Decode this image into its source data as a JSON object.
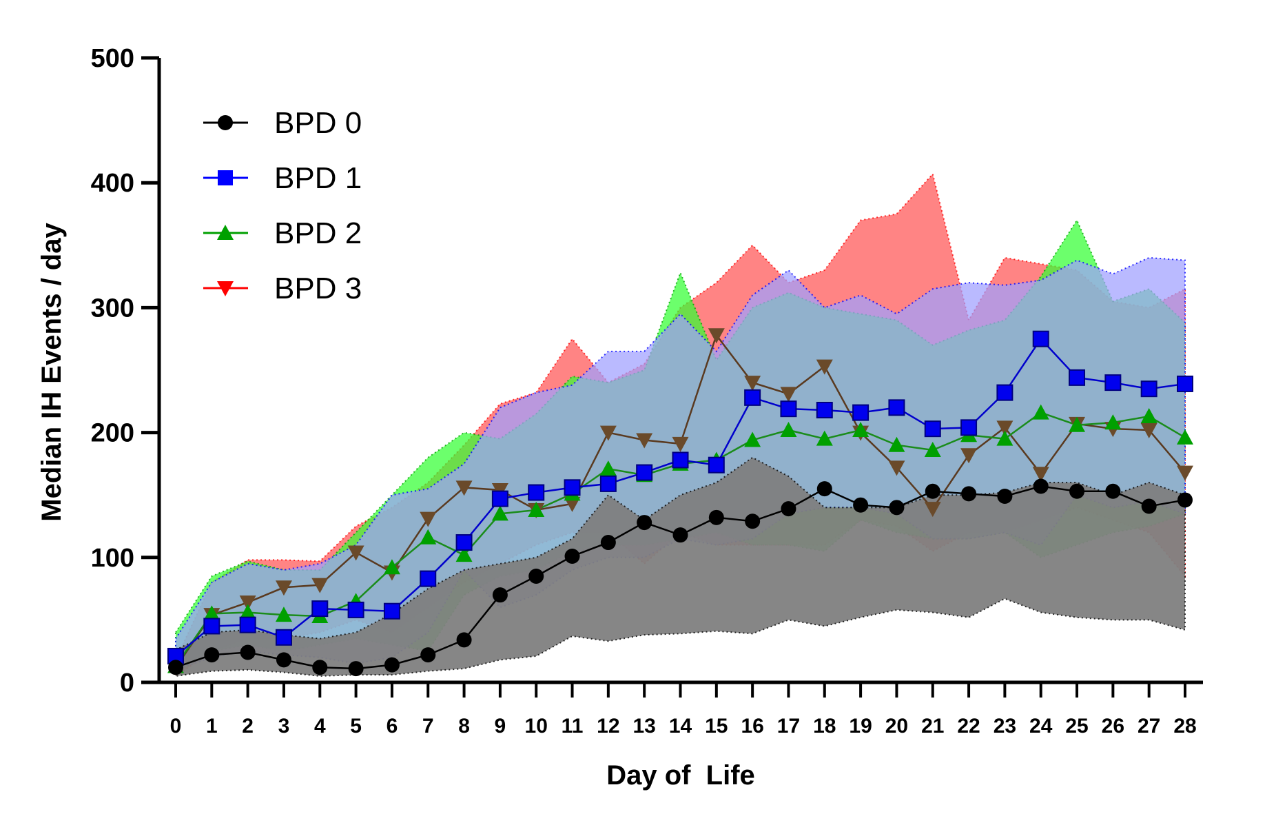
{
  "chart_data": {
    "type": "line",
    "title": "",
    "xlabel": "Day of  Life",
    "ylabel": "Median IH Events / day",
    "xlim": [
      0,
      28
    ],
    "ylim": [
      0,
      500
    ],
    "x": [
      0,
      1,
      2,
      3,
      4,
      5,
      6,
      7,
      8,
      9,
      10,
      11,
      12,
      13,
      14,
      15,
      16,
      17,
      18,
      19,
      20,
      21,
      22,
      23,
      24,
      25,
      26,
      27,
      28
    ],
    "x_ticks": [
      "0",
      "1",
      "2",
      "3",
      "4",
      "5",
      "6",
      "7",
      "8",
      "9",
      "10",
      "11",
      "12",
      "13",
      "14",
      "15",
      "16",
      "17",
      "18",
      "19",
      "20",
      "21",
      "22",
      "23",
      "24",
      "25",
      "26",
      "27",
      "28"
    ],
    "y_ticks": [
      "0",
      "100",
      "200",
      "300",
      "400",
      "500"
    ],
    "grid": false,
    "legend_position": "top-left",
    "series": [
      {
        "name": "BPD 0",
        "marker": "circle",
        "color": "#000000",
        "band_color": "#808080",
        "values": [
          12,
          22,
          24,
          18,
          12,
          11,
          14,
          22,
          34,
          70,
          85,
          101,
          112,
          128,
          118,
          132,
          129,
          139,
          155,
          142,
          140,
          153,
          151,
          149,
          157,
          153,
          153,
          141,
          146
        ],
        "lower": [
          5,
          9,
          10,
          8,
          5,
          6,
          6,
          9,
          11,
          18,
          21,
          37,
          33,
          38,
          39,
          41,
          39,
          50,
          45,
          52,
          58,
          56,
          52,
          67,
          56,
          52,
          50,
          50,
          42
        ],
        "upper": [
          26,
          40,
          42,
          38,
          35,
          40,
          55,
          75,
          90,
          95,
          100,
          115,
          150,
          130,
          150,
          160,
          180,
          165,
          140,
          140,
          140,
          150,
          150,
          152,
          160,
          160,
          150,
          160,
          150
        ]
      },
      {
        "name": "BPD 1",
        "marker": "square",
        "color": "#0000ff",
        "band_color": "#a0a0ff",
        "values": [
          21,
          45,
          46,
          36,
          59,
          58,
          57,
          83,
          112,
          147,
          152,
          156,
          159,
          168,
          178,
          174,
          228,
          219,
          218,
          216,
          220,
          203,
          204,
          232,
          275,
          244,
          240,
          235,
          239
        ],
        "lower": [
          10,
          20,
          25,
          22,
          20,
          15,
          20,
          40,
          90,
          60,
          70,
          90,
          100,
          100,
          115,
          110,
          115,
          135,
          140,
          140,
          135,
          115,
          115,
          120,
          110,
          150,
          140,
          145,
          135
        ],
        "upper": [
          35,
          80,
          95,
          90,
          95,
          110,
          150,
          155,
          175,
          220,
          232,
          238,
          265,
          265,
          295,
          265,
          310,
          330,
          300,
          310,
          295,
          315,
          320,
          318,
          322,
          338,
          327,
          340,
          338
        ]
      },
      {
        "name": "BPD 2",
        "marker": "triangle-up",
        "color": "#00a000",
        "band_color": "#33ff33",
        "values": [
          13,
          55,
          56,
          54,
          53,
          65,
          92,
          116,
          102,
          135,
          138,
          151,
          171,
          166,
          175,
          178,
          194,
          202,
          195,
          202,
          190,
          186,
          198,
          195,
          216,
          206,
          208,
          213,
          196
        ],
        "lower": [
          8,
          25,
          30,
          25,
          30,
          35,
          30,
          25,
          70,
          85,
          90,
          105,
          110,
          110,
          115,
          120,
          110,
          110,
          105,
          130,
          120,
          115,
          115,
          120,
          100,
          110,
          120,
          125,
          135
        ],
        "upper": [
          40,
          85,
          97,
          90,
          90,
          120,
          150,
          180,
          200,
          195,
          215,
          245,
          240,
          250,
          328,
          258,
          300,
          312,
          300,
          295,
          290,
          270,
          282,
          290,
          325,
          370,
          305,
          315,
          288
        ]
      },
      {
        "name": "BPD 3",
        "marker": "triangle-down",
        "color": "#ff0000",
        "band_color": "#ff5555",
        "values": [
          12,
          54,
          64,
          76,
          78,
          104,
          88,
          131,
          156,
          154,
          138,
          143,
          200,
          194,
          191,
          278,
          240,
          231,
          253,
          200,
          172,
          139,
          182,
          204,
          167,
          207,
          203,
          202,
          168
        ],
        "lower": [
          5,
          25,
          35,
          35,
          40,
          50,
          40,
          60,
          80,
          95,
          110,
          120,
          120,
          95,
          120,
          110,
          110,
          110,
          110,
          130,
          125,
          105,
          120,
          120,
          130,
          140,
          130,
          120,
          85
        ],
        "upper": [
          18,
          80,
          98,
          98,
          97,
          125,
          140,
          160,
          190,
          223,
          232,
          275,
          240,
          255,
          300,
          320,
          350,
          320,
          330,
          370,
          375,
          407,
          290,
          340,
          335,
          330,
          305,
          300,
          315
        ]
      }
    ]
  }
}
